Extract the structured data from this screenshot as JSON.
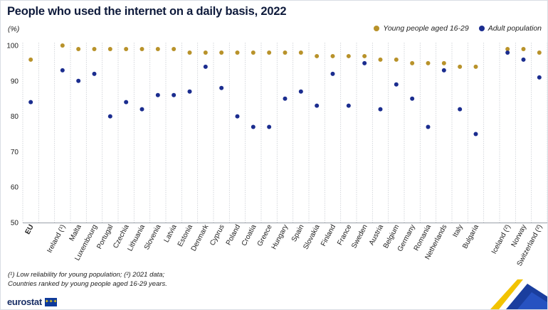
{
  "title": "People who used the internet on a daily basis, 2022",
  "unit_label": "(%)",
  "colors": {
    "young": "#b8922a",
    "adult": "#1b2d8f",
    "title": "#0e1a3b",
    "grid": "#c9cdd3"
  },
  "legend": [
    {
      "label": "Young people aged 16-29",
      "color": "#b8922a"
    },
    {
      "label": "Adult population",
      "color": "#1b2d8f"
    }
  ],
  "chart_data": {
    "type": "scatter",
    "categories": [
      "EU",
      "",
      "Ireland (¹)",
      "Malta",
      "Luxembourg",
      "Portugal",
      "Czechia",
      "Lithuania",
      "Slovenia",
      "Latvia",
      "Estonia",
      "Denmark",
      "Cyprus",
      "Poland",
      "Croatia",
      "Greece",
      "Hungary",
      "Spain",
      "Slovakia",
      "Finland",
      "France",
      "Sweden",
      "Austria",
      "Belgium",
      "Germany",
      "Romania",
      "Netherlands",
      "Italy",
      "Bulgaria",
      "",
      "Iceland (²)",
      "Norway",
      "Switzerland (²)"
    ],
    "series": [
      {
        "name": "Young people aged 16-29",
        "values": [
          96,
          null,
          100,
          99,
          99,
          99,
          99,
          99,
          99,
          99,
          98,
          98,
          98,
          98,
          98,
          98,
          98,
          98,
          97,
          97,
          97,
          97,
          96,
          96,
          95,
          95,
          95,
          94,
          94,
          null,
          99,
          99,
          98
        ]
      },
      {
        "name": "Adult population",
        "values": [
          84,
          null,
          93,
          90,
          92,
          80,
          84,
          82,
          86,
          86,
          87,
          94,
          88,
          80,
          77,
          77,
          85,
          87,
          83,
          92,
          83,
          95,
          82,
          89,
          85,
          77,
          93,
          82,
          75,
          null,
          98,
          96,
          91
        ]
      }
    ],
    "ylim": [
      50,
      100
    ],
    "yticks": [
      50,
      60,
      70,
      80,
      90,
      100
    ],
    "bold_categories": [
      "EU"
    ],
    "grid": "vertical separators between categories"
  },
  "footnote": {
    "line1": "(¹) Low reliability for young population; (²) 2021 data;",
    "line2": "Countries ranked by young people aged 16-29 years."
  },
  "logo": "eurostat"
}
